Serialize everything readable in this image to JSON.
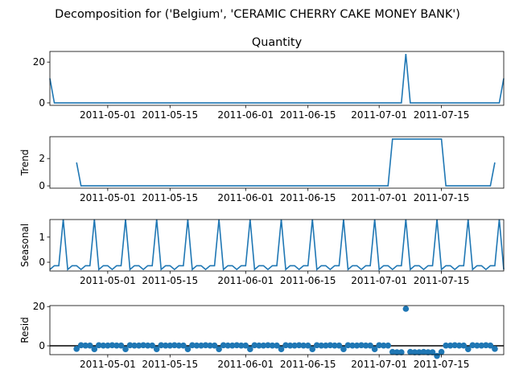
{
  "figure": {
    "suptitle": "Decomposition for ('Belgium', 'CERAMIC CHERRY CAKE MONEY BANK')"
  },
  "chart_data": [
    {
      "type": "line",
      "title": "Quantity",
      "ylabel": "",
      "color": "#1f77b4",
      "xlim": [
        "2011-04-18",
        "2011-07-29"
      ],
      "ylim": [
        -1.2,
        25.2
      ],
      "yticks": [
        0,
        20
      ],
      "xticks": [
        "2011-05-01",
        "2011-05-15",
        "2011-06-01",
        "2011-06-15",
        "2011-07-01",
        "2011-07-15"
      ],
      "series": [
        {
          "points": [
            {
              "x": "2011-04-18",
              "y": 12
            },
            {
              "x": "2011-04-19",
              "y": 0
            },
            {
              "x": "2011-07-06",
              "y": 0
            },
            {
              "x": "2011-07-07",
              "y": 24
            },
            {
              "x": "2011-07-08",
              "y": 0
            },
            {
              "x": "2011-07-28",
              "y": 0
            },
            {
              "x": "2011-07-29",
              "y": 12
            }
          ]
        }
      ]
    },
    {
      "type": "line",
      "title": "",
      "ylabel": "Trend",
      "color": "#1f77b4",
      "xlim": [
        "2011-04-18",
        "2011-07-29"
      ],
      "ylim": [
        -0.17,
        3.6
      ],
      "yticks": [
        0,
        2
      ],
      "xticks": [
        "2011-05-01",
        "2011-05-15",
        "2011-06-01",
        "2011-06-15",
        "2011-07-01",
        "2011-07-15"
      ],
      "series": [
        {
          "points": [
            {
              "x": "2011-04-24",
              "y": 1.71
            },
            {
              "x": "2011-04-25",
              "y": 0
            },
            {
              "x": "2011-07-01",
              "y": 0
            },
            {
              "x": "2011-07-03",
              "y": 0
            },
            {
              "x": "2011-07-04",
              "y": 3.43
            },
            {
              "x": "2011-07-15",
              "y": 3.43
            },
            {
              "x": "2011-07-16",
              "y": 0
            },
            {
              "x": "2011-07-26",
              "y": 0
            },
            {
              "x": "2011-07-27",
              "y": 1.71
            }
          ]
        }
      ]
    },
    {
      "type": "line",
      "title": "",
      "ylabel": "Seasonal",
      "color": "#1f77b4",
      "xlim": [
        "2011-04-18",
        "2011-07-29"
      ],
      "ylim": [
        -0.35,
        1.7
      ],
      "yticks": [
        0,
        1
      ],
      "xticks": [
        "2011-05-01",
        "2011-05-15",
        "2011-06-01",
        "2011-06-15",
        "2011-07-01",
        "2011-07-15"
      ],
      "seasonal_pattern": [
        1.71,
        -0.29,
        -0.14,
        -0.14,
        -0.29,
        -0.14,
        -0.14
      ],
      "pattern_start": "2011-04-21",
      "series": []
    },
    {
      "type": "scatter",
      "title": "",
      "ylabel": "Resid",
      "color": "#1f77b4",
      "xlim": [
        "2011-04-18",
        "2011-07-29"
      ],
      "ylim": [
        -4.5,
        20.5
      ],
      "yticks": [
        0,
        20
      ],
      "xticks": [
        "2011-05-01",
        "2011-05-15",
        "2011-06-01",
        "2011-06-15",
        "2011-07-01",
        "2011-07-15"
      ],
      "zero_line": true,
      "series": []
    }
  ]
}
